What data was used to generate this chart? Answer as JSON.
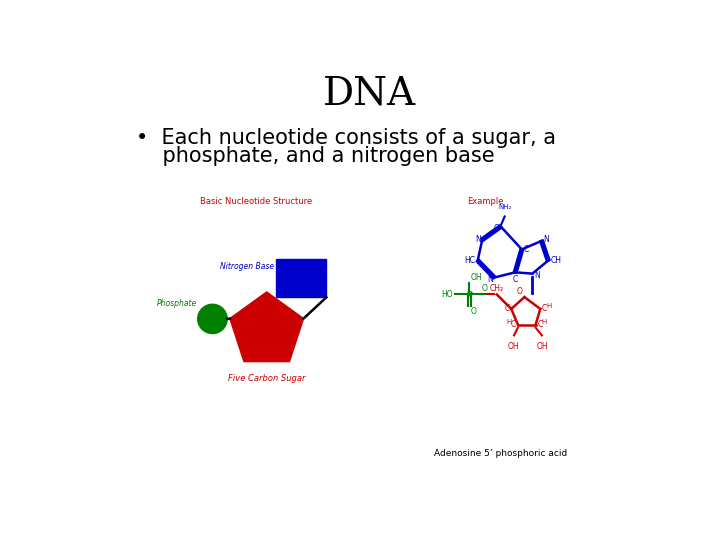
{
  "title": "DNA",
  "title_fontsize": 28,
  "title_color": "#000000",
  "bullet_line1": "•  Each nucleotide consists of a sugar, a",
  "bullet_line2": "    phosphate, and a nitrogen base",
  "bullet_fontsize": 15,
  "bullet_color": "#000000",
  "label_basic": "Basic Nucleotide Structure",
  "label_example": "Example",
  "label_nitrogen": "Nitrogen Base",
  "label_phosphate": "Phosphate",
  "label_sugar": "Five Carbon Sugar",
  "label_adenosine": "Adenosine 5’ phosphoric acid",
  "red": "#cc0000",
  "green": "#008000",
  "blue": "#0000cc",
  "bg_color": "#ffffff",
  "diagram_scale": 1.0
}
